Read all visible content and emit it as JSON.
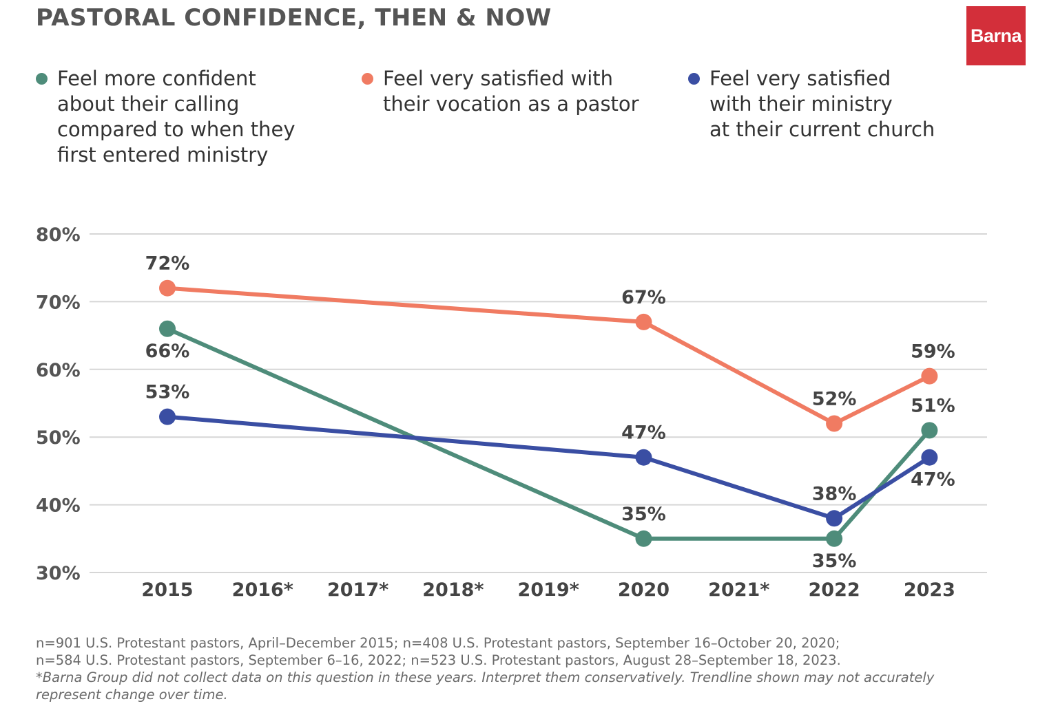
{
  "header": {
    "title": "PASTORAL CONFIDENCE, THEN & NOW",
    "logo_text": "Barna"
  },
  "colors": {
    "confident": "#4e8c7a",
    "vocation": "#f07b62",
    "ministry": "#3a4ea3",
    "grid": "#d6d6d6",
    "logo": "#d32f3a"
  },
  "chart_data": {
    "type": "line",
    "title": "PASTORAL CONFIDENCE, THEN & NOW",
    "categories": [
      "2015",
      "2016*",
      "2017*",
      "2018*",
      "2019*",
      "2020",
      "2021*",
      "2022",
      "2023"
    ],
    "ylim": [
      30,
      80
    ],
    "yticks": [
      "80%",
      "70%",
      "60%",
      "50%",
      "40%",
      "30%"
    ],
    "grid": true,
    "legend_position": "top",
    "series": [
      {
        "name": "Feel more confident about their calling compared to when they first entered ministry",
        "color": "#4e8c7a",
        "points": [
          {
            "category": "2015",
            "value": 66,
            "label": "66%"
          },
          {
            "category": "2020",
            "value": 35,
            "label": "35%"
          },
          {
            "category": "2022",
            "value": 35,
            "label": "35%"
          },
          {
            "category": "2023",
            "value": 51,
            "label": "51%"
          }
        ]
      },
      {
        "name": "Feel very satisfied with their vocation as a pastor",
        "color": "#f07b62",
        "points": [
          {
            "category": "2015",
            "value": 72,
            "label": "72%"
          },
          {
            "category": "2020",
            "value": 67,
            "label": "67%"
          },
          {
            "category": "2022",
            "value": 52,
            "label": "52%"
          },
          {
            "category": "2023",
            "value": 59,
            "label": "59%"
          }
        ]
      },
      {
        "name": "Feel very satisfied with their ministry at their current church",
        "color": "#3a4ea3",
        "points": [
          {
            "category": "2015",
            "value": 53,
            "label": "53%"
          },
          {
            "category": "2020",
            "value": 47,
            "label": "47%"
          },
          {
            "category": "2022",
            "value": 38,
            "label": "38%"
          },
          {
            "category": "2023",
            "value": 47,
            "label": "47%"
          }
        ]
      }
    ]
  },
  "legend": [
    {
      "text": "Feel more confident\nabout their calling\ncompared to when they\nfirst entered ministry",
      "color": "#4e8c7a"
    },
    {
      "text": "Feel very satisfied with\ntheir vocation as a pastor",
      "color": "#f07b62"
    },
    {
      "text": "Feel very satisfied\nwith their ministry\nat their current church",
      "color": "#3a4ea3"
    }
  ],
  "footnote": {
    "line1": "n=901 U.S. Protestant pastors, April–December 2015; n=408 U.S. Protestant pastors, September 16–October 20, 2020;",
    "line2": "n=584 U.S. Protestant pastors, September 6–16, 2022; n=523 U.S. Protestant pastors, August 28–September 18, 2023.",
    "note": "*Barna Group did not collect data on this question in these years. Interpret them conservatively. Trendline shown may not accurately represent change over time."
  }
}
